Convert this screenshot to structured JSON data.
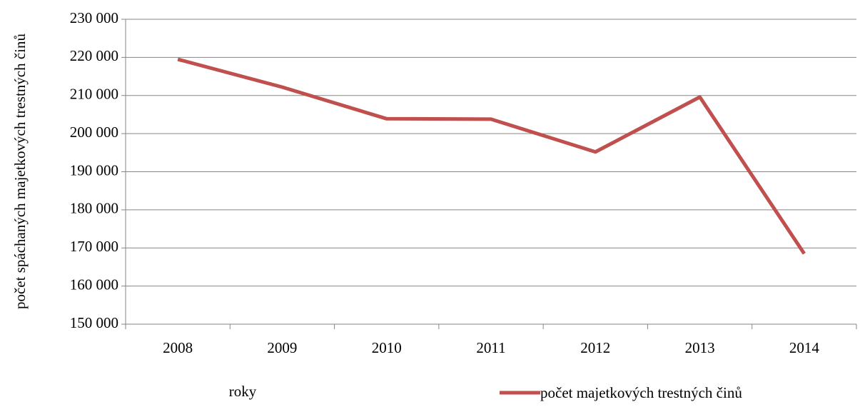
{
  "chart_data": {
    "type": "line",
    "categories": [
      "2008",
      "2009",
      "2010",
      "2011",
      "2012",
      "2013",
      "2014"
    ],
    "series": [
      {
        "name": "počet majetkových trestných činů",
        "color": "#c0504d",
        "values": [
          219500,
          212200,
          203900,
          203800,
          195200,
          209600,
          168500
        ]
      }
    ],
    "ylim": [
      150000,
      230000
    ],
    "yticks": [
      {
        "value": 150000,
        "label": "150 000"
      },
      {
        "value": 160000,
        "label": "160 000"
      },
      {
        "value": 170000,
        "label": "170 000"
      },
      {
        "value": 180000,
        "label": "180 000"
      },
      {
        "value": 190000,
        "label": "190 000"
      },
      {
        "value": 200000,
        "label": "200 000"
      },
      {
        "value": 210000,
        "label": "210 000"
      },
      {
        "value": 220000,
        "label": "220 000"
      },
      {
        "value": 230000,
        "label": "230 000"
      }
    ],
    "y_label": "počet spáchaných majetkových trestných činů",
    "x_label": "roky",
    "grid": true,
    "legend": "bottom-right"
  }
}
